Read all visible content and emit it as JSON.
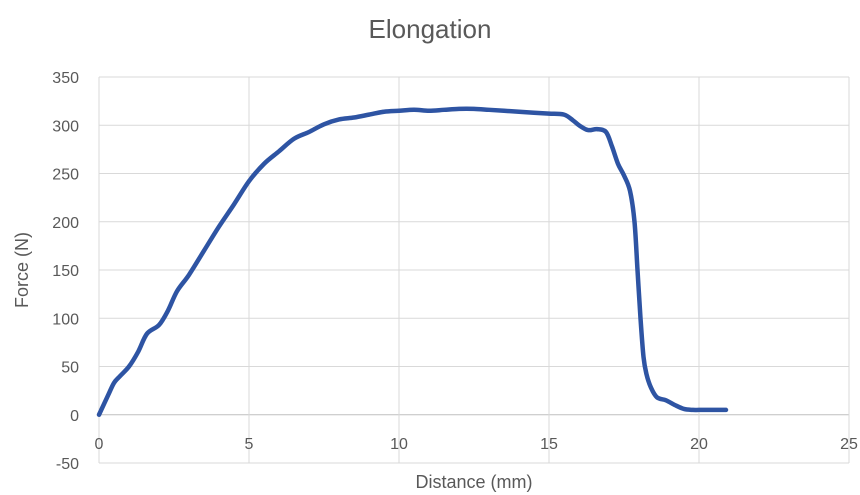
{
  "chart_data": {
    "type": "line",
    "title": "Elongation",
    "xlabel": "Distance (mm)",
    "ylabel": "Force (N)",
    "xlim": [
      0,
      25
    ],
    "ylim": [
      -50,
      350
    ],
    "xticks": [
      0,
      5,
      10,
      15,
      20,
      25
    ],
    "yticks": [
      -50,
      0,
      50,
      100,
      150,
      200,
      250,
      300,
      350
    ],
    "grid": true,
    "legend": "none",
    "line_color": "#2e54a3",
    "series": [
      {
        "x": [
          0,
          0.3,
          0.5,
          0.7,
          1.0,
          1.3,
          1.6,
          2.0,
          2.3,
          2.6,
          3.0,
          3.5,
          4.0,
          4.5,
          5.0,
          5.5,
          6.0,
          6.5,
          7.0,
          7.5,
          8.0,
          8.5,
          9.0,
          9.5,
          10.0,
          10.5,
          11.0,
          11.5,
          12.0,
          12.5,
          13.0,
          13.5,
          14.0,
          14.5,
          15.0,
          15.5,
          15.8,
          16.0,
          16.3,
          16.6,
          16.9,
          17.1,
          17.3,
          17.5,
          17.7,
          17.85,
          17.95,
          18.05,
          18.15,
          18.25,
          18.4,
          18.6,
          18.9,
          19.2,
          19.5,
          19.8,
          20.0,
          20.3,
          20.6,
          20.9
        ],
        "y": [
          0,
          20,
          33,
          40,
          50,
          65,
          84,
          93,
          108,
          128,
          145,
          170,
          195,
          218,
          242,
          260,
          273,
          286,
          293,
          301,
          306,
          308,
          311,
          314,
          315,
          316,
          315,
          316,
          317,
          317,
          316,
          315,
          314,
          313,
          312,
          311,
          305,
          300,
          295,
          296,
          293,
          278,
          260,
          248,
          232,
          200,
          150,
          100,
          60,
          42,
          28,
          18,
          15,
          10,
          6,
          5,
          5,
          5,
          5,
          5
        ]
      }
    ]
  }
}
